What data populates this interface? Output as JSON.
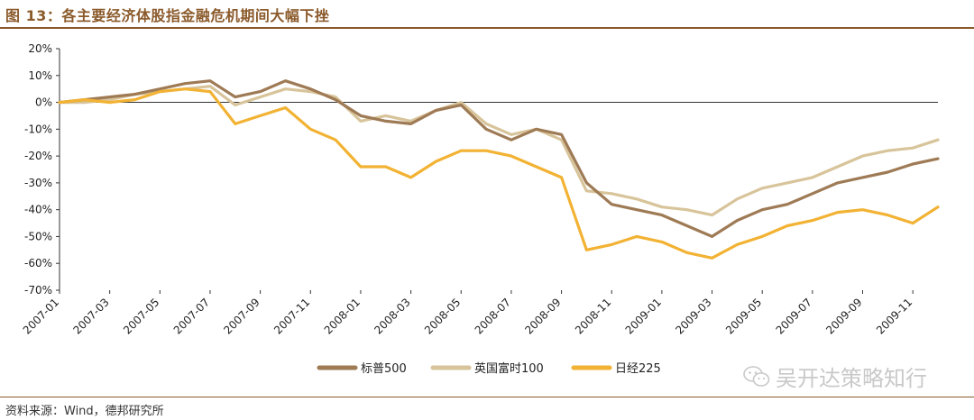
{
  "title": "图 13：各主要经济体股指金融危机期间大幅下挫",
  "source": "资料来源：Wind，德邦研究所",
  "watermark": "吴开达策略知行",
  "colors": {
    "accent": "#8B5A2B",
    "sp500": "#9E7A55",
    "ftse": "#D8C49A",
    "nikkei": "#F2B233"
  },
  "chart_data": {
    "type": "line",
    "title": "",
    "xlabel": "",
    "ylabel": "",
    "ylim": [
      -0.7,
      0.2
    ],
    "yticks": [
      0.2,
      0.1,
      0,
      -0.1,
      -0.2,
      -0.3,
      -0.4,
      -0.5,
      -0.6,
      -0.7
    ],
    "ytick_labels": [
      "20%",
      "10%",
      "0%",
      "-10%",
      "-20%",
      "-30%",
      "-40%",
      "-50%",
      "-60%",
      "-70%"
    ],
    "xtick_labels": [
      "2007-01",
      "2007-03",
      "2007-05",
      "2007-07",
      "2007-09",
      "2007-11",
      "2008-01",
      "2008-03",
      "2008-05",
      "2008-07",
      "2008-09",
      "2008-11",
      "2009-01",
      "2009-03",
      "2009-05",
      "2009-07",
      "2009-09",
      "2009-11"
    ],
    "legend_position": "bottom",
    "grid": false,
    "x": [
      "2007-01",
      "2007-02",
      "2007-03",
      "2007-04",
      "2007-05",
      "2007-06",
      "2007-07",
      "2007-08",
      "2007-09",
      "2007-10",
      "2007-11",
      "2007-12",
      "2008-01",
      "2008-02",
      "2008-03",
      "2008-04",
      "2008-05",
      "2008-06",
      "2008-07",
      "2008-08",
      "2008-09",
      "2008-10",
      "2008-11",
      "2008-12",
      "2009-01",
      "2009-02",
      "2009-03",
      "2009-04",
      "2009-05",
      "2009-06",
      "2009-07",
      "2009-08",
      "2009-09",
      "2009-10",
      "2009-11",
      "2009-12"
    ],
    "series": [
      {
        "name": "标普500",
        "values": [
          0.0,
          0.01,
          0.02,
          0.03,
          0.05,
          0.07,
          0.08,
          0.02,
          0.04,
          0.08,
          0.05,
          0.01,
          -0.05,
          -0.07,
          -0.08,
          -0.03,
          -0.01,
          -0.1,
          -0.14,
          -0.1,
          -0.12,
          -0.3,
          -0.38,
          -0.4,
          -0.42,
          -0.46,
          -0.5,
          -0.44,
          -0.4,
          -0.38,
          -0.34,
          -0.3,
          -0.28,
          -0.26,
          -0.23,
          -0.21
        ]
      },
      {
        "name": "英国富时100",
        "values": [
          0.0,
          0.0,
          0.01,
          0.03,
          0.04,
          0.05,
          0.06,
          -0.01,
          0.02,
          0.05,
          0.04,
          0.02,
          -0.07,
          -0.05,
          -0.07,
          -0.03,
          0.0,
          -0.08,
          -0.12,
          -0.1,
          -0.14,
          -0.33,
          -0.34,
          -0.36,
          -0.39,
          -0.4,
          -0.42,
          -0.36,
          -0.32,
          -0.3,
          -0.28,
          -0.24,
          -0.2,
          -0.18,
          -0.17,
          -0.14
        ]
      },
      {
        "name": "日经225",
        "values": [
          0.0,
          0.01,
          0.0,
          0.01,
          0.04,
          0.05,
          0.04,
          -0.08,
          -0.05,
          -0.02,
          -0.1,
          -0.14,
          -0.24,
          -0.24,
          -0.28,
          -0.22,
          -0.18,
          -0.18,
          -0.2,
          -0.24,
          -0.28,
          -0.55,
          -0.53,
          -0.5,
          -0.52,
          -0.56,
          -0.58,
          -0.53,
          -0.5,
          -0.46,
          -0.44,
          -0.41,
          -0.4,
          -0.42,
          -0.45,
          -0.39
        ]
      }
    ]
  }
}
